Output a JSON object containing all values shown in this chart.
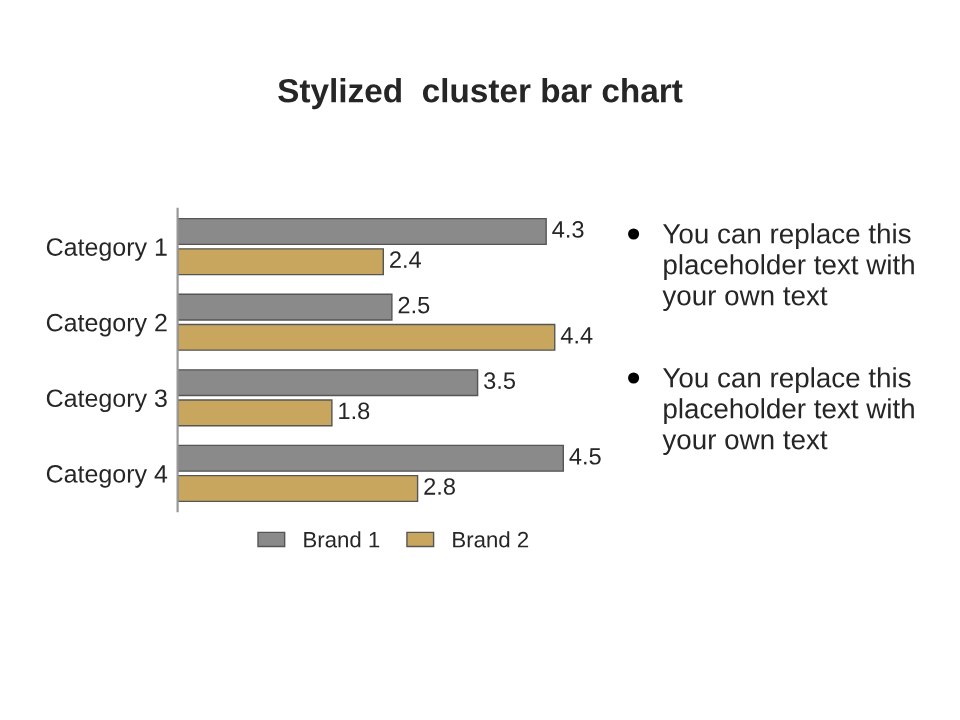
{
  "chart_data": {
    "type": "bar",
    "orientation": "horizontal",
    "title": "Stylized  cluster bar chart",
    "categories": [
      "Category 1",
      "Category 2",
      "Category 3",
      "Category 4"
    ],
    "series": [
      {
        "name": "Brand 1",
        "color": "#8a8a8a",
        "values": [
          4.3,
          2.5,
          3.5,
          4.5
        ]
      },
      {
        "name": "Brand 2",
        "color": "#c8a65e",
        "values": [
          2.4,
          4.4,
          1.8,
          2.8
        ]
      }
    ],
    "data_labels": true,
    "legend": "bottom",
    "grid": false,
    "tick_labels": "y",
    "annotations": [
      "You can replace this placeholder text with your own text",
      "You can replace this placeholder text with your own text"
    ]
  }
}
